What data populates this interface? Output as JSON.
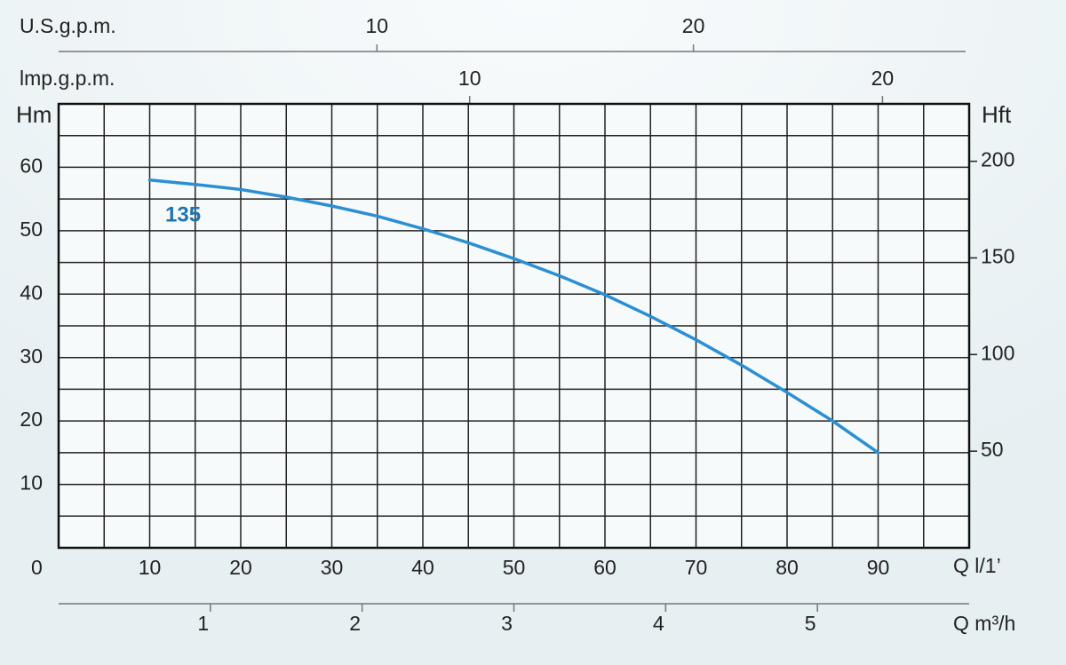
{
  "chart_data": {
    "type": "line",
    "xlabel": "Q l/1’",
    "ylabel": "Hm",
    "y2label": "Hft",
    "origin_label": "0",
    "x": [
      10,
      15,
      20,
      25,
      30,
      35,
      40,
      45,
      50,
      55,
      60,
      65,
      70,
      75,
      80,
      85,
      90
    ],
    "series": [
      {
        "name": "135",
        "color": "#2b8fd3",
        "values": [
          58,
          57.3,
          56.5,
          55.3,
          53.9,
          52.3,
          50.3,
          48.1,
          45.6,
          42.9,
          39.9,
          36.5,
          32.8,
          28.8,
          24.5,
          20,
          15
        ]
      }
    ],
    "xlim": [
      0,
      100
    ],
    "xticks": [
      10,
      20,
      30,
      40,
      50,
      60,
      70,
      80,
      90
    ],
    "xgrid": [
      5,
      10,
      15,
      20,
      25,
      30,
      35,
      40,
      45,
      50,
      55,
      60,
      65,
      70,
      75,
      80,
      85,
      90,
      95
    ],
    "ylim": [
      0,
      70
    ],
    "yticks": [
      10,
      20,
      30,
      40,
      50,
      60
    ],
    "ygrid": [
      5,
      10,
      15,
      20,
      25,
      30,
      35,
      40,
      45,
      50,
      55,
      60,
      65
    ],
    "y2lim": [
      0,
      229.7
    ],
    "y2ticks": [
      50,
      100,
      150,
      200
    ],
    "us_gpm_axis": {
      "label": "U.S.g.p.m.",
      "lim": [
        0,
        28.6
      ],
      "ticks": [
        10,
        20
      ]
    },
    "imp_gpm_axis": {
      "label": "lmp.g.p.m.",
      "lim": [
        0,
        22.1
      ],
      "ticks": [
        10,
        20
      ]
    },
    "m3h_axis": {
      "label": "Q m³/h",
      "lim": [
        0,
        6
      ],
      "ticks": [
        1,
        2,
        3,
        4,
        5
      ]
    },
    "grid": true
  }
}
